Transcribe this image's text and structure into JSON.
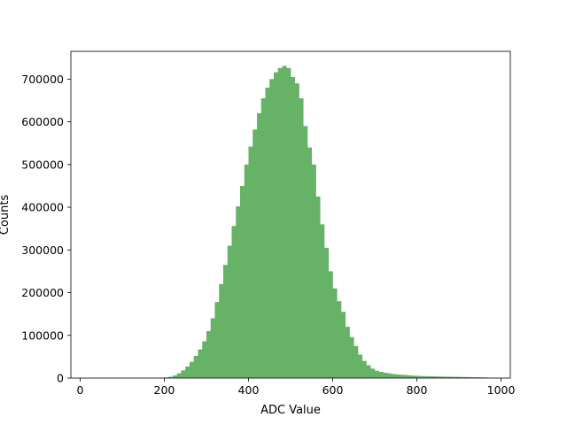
{
  "chart_data": {
    "type": "bar",
    "title": "",
    "xlabel": "ADC Value",
    "ylabel": "Counts",
    "bar_color": "#66b266",
    "xlim": [
      -22,
      1022
    ],
    "ylim": [
      0,
      765000
    ],
    "x_ticks": [
      0,
      200,
      400,
      600,
      800,
      1000
    ],
    "y_ticks": [
      0,
      100000,
      200000,
      300000,
      400000,
      500000,
      600000,
      700000
    ],
    "bin_width": 10,
    "bin_left_edges": [
      0,
      10,
      20,
      30,
      40,
      50,
      60,
      70,
      80,
      90,
      100,
      110,
      120,
      130,
      140,
      150,
      160,
      170,
      180,
      190,
      200,
      210,
      220,
      230,
      240,
      250,
      260,
      270,
      280,
      290,
      300,
      310,
      320,
      330,
      340,
      350,
      360,
      370,
      380,
      390,
      400,
      410,
      420,
      430,
      440,
      450,
      460,
      470,
      480,
      490,
      500,
      510,
      520,
      530,
      540,
      550,
      560,
      570,
      580,
      590,
      600,
      610,
      620,
      630,
      640,
      650,
      660,
      670,
      680,
      690,
      700,
      710,
      720,
      730,
      740,
      750,
      760,
      770,
      780,
      790,
      800,
      810,
      820,
      830,
      840,
      850,
      860,
      870,
      880,
      890,
      900,
      910,
      920,
      930,
      940,
      950,
      960,
      970,
      980,
      990
    ],
    "values": [
      0,
      0,
      0,
      0,
      0,
      0,
      0,
      0,
      0,
      0,
      0,
      0,
      0,
      0,
      0,
      0,
      0,
      0,
      0,
      500,
      1500,
      3000,
      6000,
      11000,
      18000,
      27000,
      38000,
      52000,
      67000,
      86000,
      110000,
      140000,
      178000,
      220000,
      265000,
      310000,
      356000,
      402000,
      450000,
      500000,
      542000,
      582000,
      620000,
      655000,
      680000,
      700000,
      716000,
      726000,
      731000,
      726000,
      705000,
      690000,
      655000,
      590000,
      540000,
      500000,
      425000,
      360000,
      305000,
      250000,
      210000,
      180000,
      155000,
      120000,
      96000,
      75000,
      55000,
      40000,
      30000,
      22000,
      17000,
      14500,
      12500,
      11000,
      9500,
      8500,
      7800,
      7000,
      6200,
      5500,
      5000,
      4700,
      4400,
      4100,
      3800,
      3600,
      3400,
      3200,
      3000,
      2800,
      2600,
      2400,
      2200,
      2000,
      1800,
      1600,
      1300,
      1000,
      600,
      300
    ]
  }
}
